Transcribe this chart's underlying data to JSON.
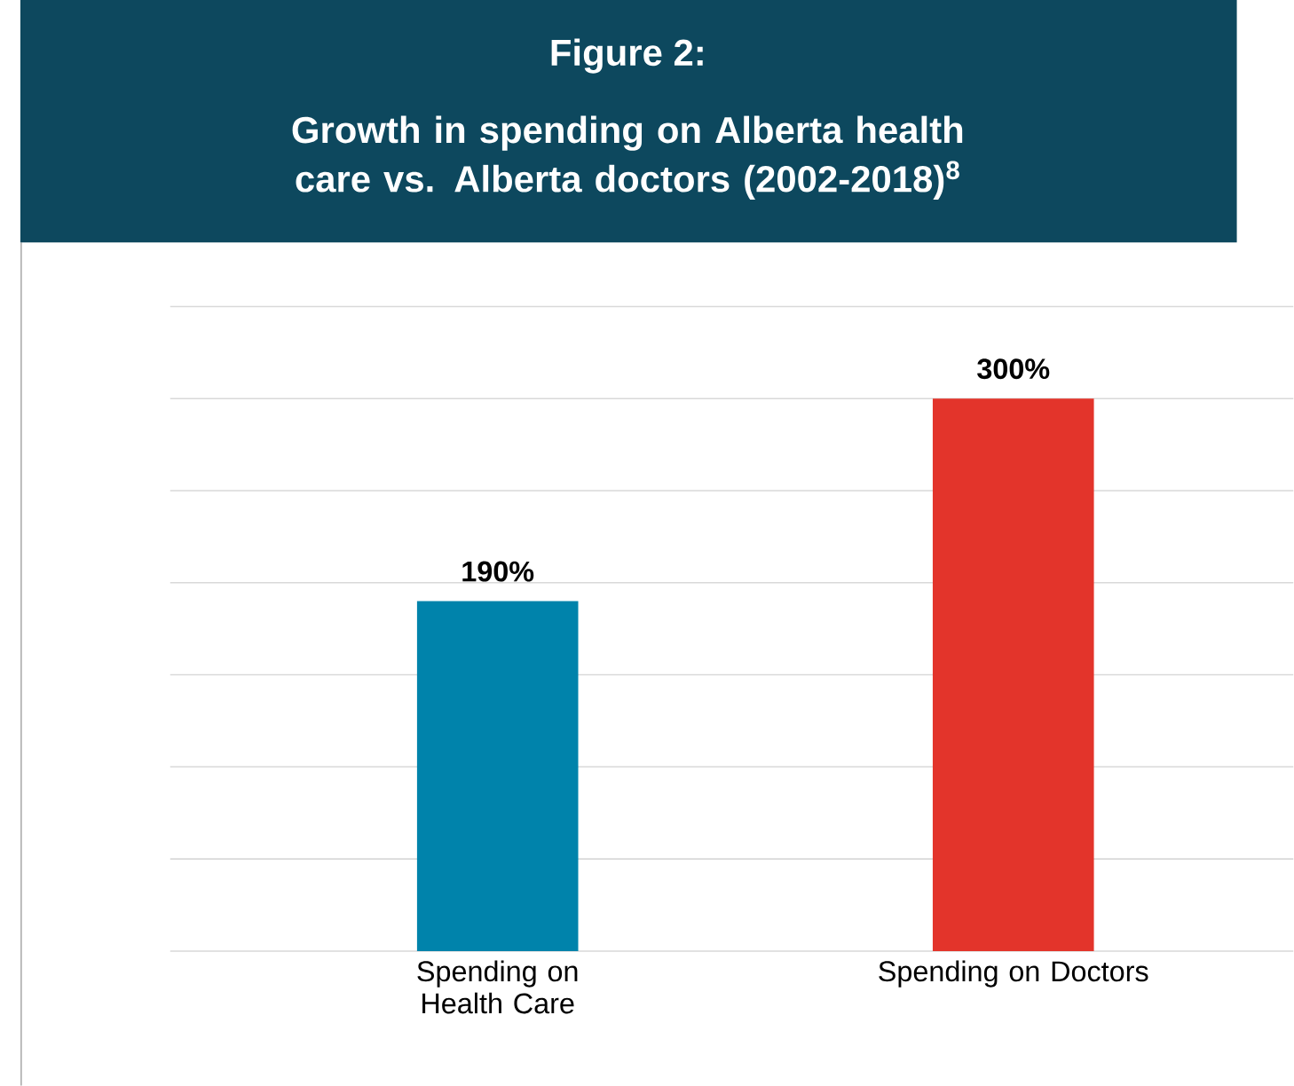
{
  "chart_data": {
    "type": "bar",
    "title": "Figure 2:",
    "subtitle": "Growth in spending on Alberta health care vs. Alberta doctors (2002-2018)$^{8}$",
    "categories": [
      "Spending on Health Care",
      "Spending on Doctors"
    ],
    "values": [
      190,
      300
    ],
    "colors": [
      "#0083ab",
      "#e3342b"
    ],
    "value_labels": [
      "190%",
      "300%"
    ],
    "ylim": [
      0,
      350
    ],
    "yticks": [
      {
        "value": 0,
        "label": null
      },
      {
        "value": 50,
        "label": null
      },
      {
        "value": 100,
        "label": null
      },
      {
        "value": 150,
        "label": null
      },
      {
        "value": 200,
        "label": null
      },
      {
        "value": 250,
        "label": null
      },
      {
        "value": 300,
        "label": null
      },
      {
        "value": 350,
        "label": null
      }
    ],
    "grid": "y",
    "tick_labels": "x"
  }
}
